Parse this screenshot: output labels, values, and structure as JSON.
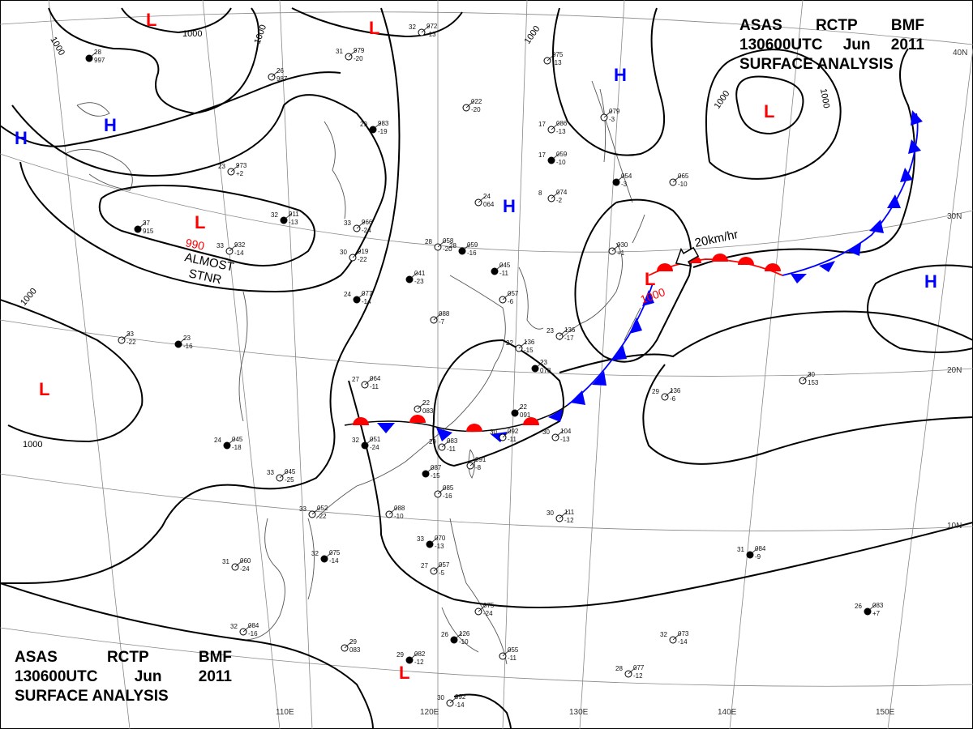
{
  "title": {
    "line1": [
      "ASAS",
      "RCTP",
      "BMF"
    ],
    "line2": [
      "130600UTC",
      "Jun",
      "2011"
    ],
    "line3": "SURFACE ANALYSIS"
  },
  "lon_labels": [
    "110E",
    "120E",
    "130E",
    "140E",
    "150E"
  ],
  "lat_labels": [
    "40N",
    "30N",
    "20N",
    "10N"
  ],
  "isobar_labels": [
    "1000",
    "1000",
    "1000",
    "1000",
    "1000",
    "1000",
    "1000",
    "990",
    "1000"
  ],
  "annotations": {
    "stationary": [
      "ALMOST",
      "STNR"
    ],
    "motion": "20km/hr"
  },
  "pressure_centers": [
    {
      "type": "L",
      "label": "L"
    },
    {
      "type": "L",
      "label": "L"
    },
    {
      "type": "L",
      "label": "L"
    },
    {
      "type": "L",
      "label": "L"
    },
    {
      "type": "L",
      "label": "L"
    },
    {
      "type": "L",
      "label": "L"
    },
    {
      "type": "L",
      "label": "L"
    },
    {
      "type": "H",
      "label": "H"
    },
    {
      "type": "H",
      "label": "H"
    },
    {
      "type": "H",
      "label": "H"
    },
    {
      "type": "H",
      "label": "H"
    }
  ],
  "stations": [
    [
      "28",
      "997"
    ],
    [
      "26",
      "987"
    ],
    [
      "31",
      "979",
      "-20"
    ],
    [
      "29",
      "983",
      "-19"
    ],
    [
      "32",
      "972",
      "-13"
    ],
    [
      "23",
      "973",
      "+2"
    ],
    [
      "32",
      "911",
      "-13"
    ],
    [
      "33",
      "966",
      "-24"
    ],
    [
      "33",
      "932",
      "-14"
    ],
    [
      "37",
      "915"
    ],
    [
      "30",
      "919",
      "-22"
    ],
    [
      "28",
      "058",
      "-20"
    ],
    [
      "28",
      "059",
      "-16"
    ],
    [
      "24",
      "064"
    ],
    [
      "17",
      "086",
      "-13"
    ],
    [
      "17",
      "059",
      "-10"
    ],
    [
      "075",
      "-13"
    ],
    [
      "079",
      "-3"
    ],
    [
      "054",
      "-3"
    ],
    [
      "065",
      "-10"
    ],
    [
      "030",
      "+1"
    ],
    [
      "045",
      "-11"
    ],
    [
      "057",
      "-6"
    ],
    [
      "088",
      "-7"
    ],
    [
      "24",
      "077",
      "-14"
    ],
    [
      "23",
      "136",
      "-17"
    ],
    [
      "22",
      "136",
      "-15"
    ],
    [
      "23",
      "078"
    ],
    [
      "27",
      "064",
      "-11"
    ],
    [
      "22",
      "083"
    ],
    [
      "32",
      "051",
      "-24"
    ],
    [
      "29",
      "083",
      "-11"
    ],
    [
      "30",
      "092",
      "-11"
    ],
    [
      "22",
      "091"
    ],
    [
      "30",
      "104",
      "-13"
    ],
    [
      "091",
      "-8"
    ],
    [
      "087",
      "-15"
    ],
    [
      "085",
      "-16"
    ],
    [
      "088",
      "-10"
    ],
    [
      "24",
      "045",
      "-18"
    ],
    [
      "33",
      "045",
      "-25"
    ],
    [
      "33",
      "052",
      "-22"
    ],
    [
      "32",
      "075",
      "-14"
    ],
    [
      "31",
      "060",
      "-24"
    ],
    [
      "30",
      "111",
      "-12"
    ],
    [
      "31",
      "084",
      "-9"
    ],
    [
      "29",
      "136",
      "-6"
    ],
    [
      "30",
      "153"
    ],
    [
      "26",
      "083",
      "+7"
    ],
    [
      "32",
      "073",
      "-14"
    ],
    [
      "28",
      "077",
      "-12"
    ],
    [
      "33",
      "070",
      "-13"
    ],
    [
      "27",
      "057",
      "-5"
    ],
    [
      "075",
      "-24"
    ],
    [
      "26",
      "126",
      "-10"
    ],
    [
      "055",
      "-11"
    ],
    [
      "29",
      "083"
    ],
    [
      "29",
      "082",
      "-12"
    ],
    [
      "30",
      "092",
      "-14"
    ],
    [
      "32",
      "084",
      "-16"
    ],
    [
      "23",
      "-16"
    ],
    [
      "33",
      "-22"
    ],
    [
      "022",
      "-20"
    ],
    [
      "041",
      "-23"
    ],
    [
      "8",
      "074",
      "-2"
    ]
  ]
}
